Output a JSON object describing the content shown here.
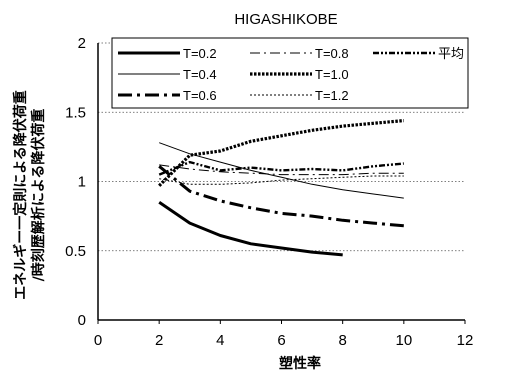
{
  "chart_data": {
    "type": "line",
    "title": "HIGASHIKOBE",
    "xlabel": "塑性率",
    "ylabel_lines": [
      "エネルギー一定則による降伏荷重",
      "/時刻歴解析による降伏荷重"
    ],
    "xlim": [
      0,
      12
    ],
    "ylim": [
      0,
      2
    ],
    "x_ticks": [
      "0",
      "2",
      "4",
      "6",
      "8",
      "10",
      "12"
    ],
    "y_ticks": [
      "0",
      "0.5",
      "1",
      "1.5",
      "2"
    ],
    "grid": "horizontal-dotted",
    "legend_position": "top",
    "series": [
      {
        "name": "T=0.2",
        "style": "thick-solid",
        "x": [
          2,
          3,
          4,
          5,
          6,
          7,
          8
        ],
        "y": [
          0.85,
          0.7,
          0.61,
          0.55,
          0.52,
          0.49,
          0.47
        ]
      },
      {
        "name": "T=0.4",
        "style": "thin-solid",
        "x": [
          2,
          3,
          4,
          5,
          6,
          7,
          8,
          9,
          10
        ],
        "y": [
          1.28,
          1.2,
          1.14,
          1.08,
          1.03,
          0.98,
          0.94,
          0.91,
          0.88
        ]
      },
      {
        "name": "T=0.6",
        "style": "thick-dashdot",
        "x": [
          2,
          3,
          4,
          5,
          6,
          7,
          8,
          9,
          10
        ],
        "y": [
          1.11,
          0.93,
          0.86,
          0.81,
          0.77,
          0.75,
          0.72,
          0.7,
          0.68
        ]
      },
      {
        "name": "T=0.8",
        "style": "thin-dashdot",
        "x": [
          2,
          3,
          4,
          5,
          6,
          7,
          8,
          9,
          10
        ],
        "y": [
          1.12,
          1.09,
          1.07,
          1.06,
          1.05,
          1.05,
          1.05,
          1.06,
          1.06
        ]
      },
      {
        "name": "T=1.0",
        "style": "thick-dotted",
        "x": [
          2,
          3,
          4,
          5,
          6,
          7,
          8,
          9,
          10
        ],
        "y": [
          0.97,
          1.19,
          1.22,
          1.29,
          1.33,
          1.37,
          1.4,
          1.42,
          1.44
        ]
      },
      {
        "name": "T=1.2",
        "style": "thin-dotted",
        "x": [
          2,
          3,
          4,
          5,
          6,
          7,
          8,
          9,
          10
        ],
        "y": [
          1.02,
          0.98,
          0.98,
          0.99,
          1.01,
          1.02,
          1.03,
          1.04,
          1.04
        ]
      },
      {
        "name": "平均",
        "style": "dash-dot-dot",
        "x": [
          2,
          3,
          4,
          5,
          6,
          7,
          8,
          9,
          10
        ],
        "y": [
          1.05,
          1.14,
          1.08,
          1.1,
          1.08,
          1.09,
          1.08,
          1.11,
          1.13
        ]
      }
    ]
  }
}
